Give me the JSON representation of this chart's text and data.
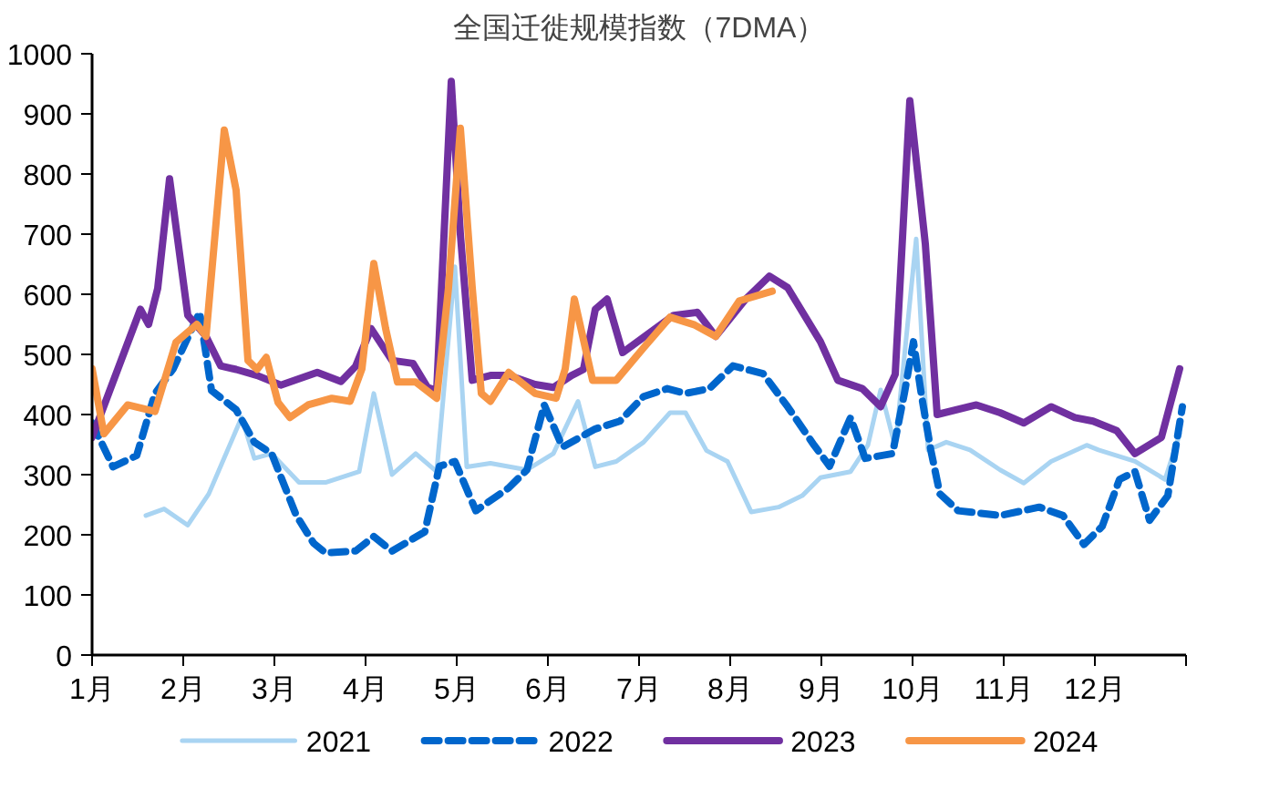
{
  "chart_data": {
    "type": "line",
    "title": "全国迁徙规模指数（7DMA）",
    "xlim": [
      1,
      13
    ],
    "xticks": [
      {
        "value": 1,
        "label": "1月"
      },
      {
        "value": 2,
        "label": "2月"
      },
      {
        "value": 3,
        "label": "3月"
      },
      {
        "value": 4,
        "label": "4月"
      },
      {
        "value": 5,
        "label": "5月"
      },
      {
        "value": 6,
        "label": "6月"
      },
      {
        "value": 7,
        "label": "7月"
      },
      {
        "value": 8,
        "label": "8月"
      },
      {
        "value": 9,
        "label": "9月"
      },
      {
        "value": 10,
        "label": "10月"
      },
      {
        "value": 11,
        "label": "11月"
      },
      {
        "value": 12,
        "label": "12月"
      },
      {
        "value": 13,
        "label": null
      }
    ],
    "ylim": [
      0,
      1000
    ],
    "yticks": [
      0,
      100,
      200,
      300,
      400,
      500,
      600,
      700,
      800,
      900,
      1000
    ],
    "legend": "bottom",
    "line_style": "solid",
    "series": [
      {
        "name": "2021",
        "color": "#a9d4f2",
        "x": [
          1.59,
          1.79,
          2.05,
          2.28,
          2.64,
          2.78,
          2.97,
          3.27,
          3.56,
          3.93,
          4.09,
          4.29,
          4.55,
          4.78,
          4.98,
          5.11,
          5.37,
          5.77,
          6.06,
          6.33,
          6.52,
          6.75,
          7.05,
          7.34,
          7.51,
          7.74,
          7.97,
          8.23,
          8.53,
          8.79,
          8.99,
          9.32,
          9.51,
          9.65,
          9.81,
          10.04,
          10.17,
          10.37,
          10.63,
          10.96,
          11.22,
          11.52,
          11.91,
          12.04,
          12.44,
          12.77,
          12.93
        ],
        "values": [
          232,
          243,
          216,
          268,
          395,
          327,
          335,
          287,
          287,
          305,
          435,
          300,
          335,
          305,
          646,
          313,
          319,
          308,
          335,
          422,
          313,
          322,
          354,
          403,
          403,
          340,
          322,
          238,
          246,
          265,
          295,
          305,
          349,
          441,
          346,
          692,
          341,
          354,
          341,
          308,
          286,
          322,
          349,
          341,
          322,
          292,
          368
        ]
      },
      {
        "name": "2022",
        "color": "#0066cc",
        "line_style": "dashed",
        "x": [
          1,
          1.23,
          1.49,
          1.69,
          1.89,
          2.18,
          2.31,
          2.58,
          2.78,
          2.97,
          3.24,
          3.43,
          3.56,
          3.89,
          4.09,
          4.29,
          4.65,
          4.81,
          4.98,
          5.21,
          5.57,
          5.77,
          5.96,
          6.16,
          6.52,
          6.79,
          7.05,
          7.31,
          7.51,
          7.77,
          8.03,
          8.36,
          8.63,
          8.92,
          9.09,
          9.32,
          9.48,
          9.78,
          9.91,
          10.01,
          10.1,
          10.2,
          10.3,
          10.5,
          10.96,
          11.39,
          11.65,
          11.88,
          12.08,
          12.27,
          12.44,
          12.6,
          12.8,
          12.96
        ],
        "values": [
          386,
          313,
          332,
          435,
          476,
          570,
          440,
          408,
          354,
          335,
          232,
          186,
          170,
          173,
          197,
          173,
          205,
          314,
          322,
          240,
          278,
          308,
          416,
          346,
          376,
          389,
          430,
          443,
          435,
          443,
          481,
          468,
          413,
          349,
          314,
          395,
          327,
          335,
          435,
          521,
          430,
          341,
          268,
          240,
          232,
          246,
          232,
          184,
          214,
          292,
          305,
          224,
          265,
          413
        ]
      },
      {
        "name": "2023",
        "color": "#7030a0",
        "x": [
          1,
          1.53,
          1.62,
          1.72,
          1.85,
          2.05,
          2.25,
          2.41,
          2.58,
          2.81,
          3.07,
          3.47,
          3.73,
          3.89,
          4.06,
          4.29,
          4.52,
          4.68,
          4.78,
          4.94,
          5.04,
          5.17,
          5.37,
          5.57,
          5.86,
          6.06,
          6.26,
          6.39,
          6.52,
          6.65,
          6.82,
          7.38,
          7.64,
          7.84,
          8.17,
          8.43,
          8.63,
          8.99,
          9.18,
          9.45,
          9.65,
          9.81,
          9.97,
          10.14,
          10.27,
          10.7,
          10.96,
          11.22,
          11.52,
          11.78,
          11.98,
          12.24,
          12.44,
          12.73,
          12.93
        ],
        "values": [
          362,
          575,
          550,
          610,
          792,
          565,
          530,
          481,
          475,
          465,
          449,
          470,
          455,
          480,
          543,
          490,
          485,
          445,
          440,
          954,
          700,
          457,
          465,
          465,
          450,
          445,
          465,
          475,
          575,
          592,
          503,
          565,
          570,
          530,
          592,
          630,
          611,
          521,
          457,
          443,
          413,
          467,
          922,
          684,
          400,
          416,
          403,
          386,
          413,
          395,
          389,
          373,
          335,
          362,
          476
        ]
      },
      {
        "name": "2024",
        "color": "#f79646",
        "x": [
          1,
          1.13,
          1.39,
          1.69,
          1.92,
          2.15,
          2.25,
          2.45,
          2.58,
          2.71,
          2.81,
          2.91,
          3.04,
          3.17,
          3.37,
          3.63,
          3.83,
          3.96,
          4.09,
          4.22,
          4.35,
          4.55,
          4.78,
          4.91,
          5.04,
          5.17,
          5.27,
          5.37,
          5.57,
          5.86,
          6.09,
          6.19,
          6.29,
          6.49,
          6.75,
          7.05,
          7.34,
          7.61,
          7.84,
          8.1,
          8.46
        ],
        "values": [
          476,
          368,
          416,
          405,
          520,
          550,
          530,
          873,
          773,
          490,
          475,
          495,
          420,
          395,
          416,
          427,
          422,
          476,
          651,
          543,
          454,
          454,
          427,
          611,
          876,
          611,
          435,
          422,
          470,
          435,
          427,
          476,
          592,
          457,
          457,
          511,
          562,
          549,
          530,
          589,
          605
        ]
      }
    ]
  }
}
